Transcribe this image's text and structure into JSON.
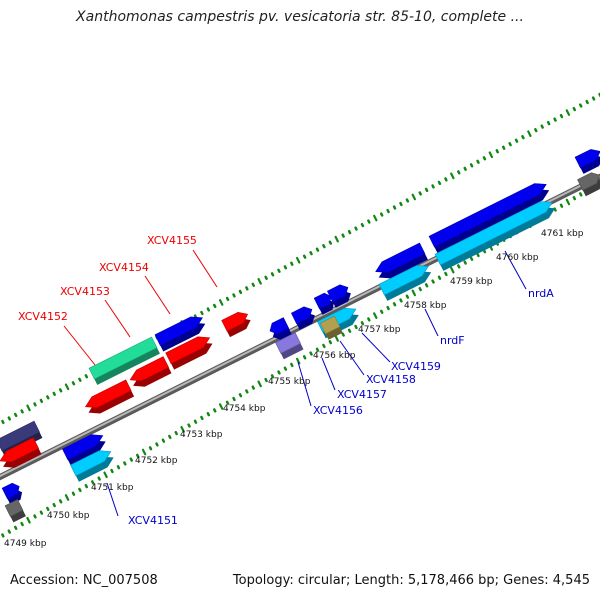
{
  "title": "Xanthomonas campestris pv. vesicatoria str. 85-10, complete ...",
  "footer": {
    "accession": "Accession: NC_007508",
    "summary": "Topology: circular; Length: 5,178,466 bp; Genes: 4,545"
  },
  "colors": {
    "red_gene": "#ff0000",
    "blue_gene": "#0000ee",
    "cyan_gene": "#00ccff",
    "green_gene": "#22dd99",
    "navy_gene": "#3a3a7a",
    "gray_gene": "#666666",
    "purple_gene": "#8877dd",
    "backbone": "#8c8c8c",
    "ticks": "#118811",
    "red_label": "#ee0000",
    "blue_label": "#0000cc"
  },
  "scale_ticks": [
    {
      "kbp": 4749,
      "label": "4749 kbp"
    },
    {
      "kbp": 4750,
      "label": "4750 kbp"
    },
    {
      "kbp": 4751,
      "label": "4751 kbp"
    },
    {
      "kbp": 4752,
      "label": "4752 kbp"
    },
    {
      "kbp": 4753,
      "label": "4753 kbp"
    },
    {
      "kbp": 4754,
      "label": "4754 kbp"
    },
    {
      "kbp": 4755,
      "label": "4755 kbp"
    },
    {
      "kbp": 4756,
      "label": "4756 kbp"
    },
    {
      "kbp": 4757,
      "label": "4757 kbp"
    },
    {
      "kbp": 4758,
      "label": "4758 kbp"
    },
    {
      "kbp": 4759,
      "label": "4759 kbp"
    },
    {
      "kbp": 4760,
      "label": "4760 kbp"
    },
    {
      "kbp": 4761,
      "label": "4761 kbp"
    }
  ],
  "gene_labels": [
    {
      "text": "XCV4151",
      "color": "blue"
    },
    {
      "text": "XCV4152",
      "color": "red"
    },
    {
      "text": "XCV4153",
      "color": "red"
    },
    {
      "text": "XCV4154",
      "color": "red"
    },
    {
      "text": "XCV4155",
      "color": "red"
    },
    {
      "text": "XCV4156",
      "color": "blue"
    },
    {
      "text": "XCV4157",
      "color": "blue"
    },
    {
      "text": "XCV4158",
      "color": "blue"
    },
    {
      "text": "XCV4159",
      "color": "blue"
    },
    {
      "text": "nrdF",
      "color": "blue"
    },
    {
      "text": "nrdA",
      "color": "blue"
    }
  ]
}
